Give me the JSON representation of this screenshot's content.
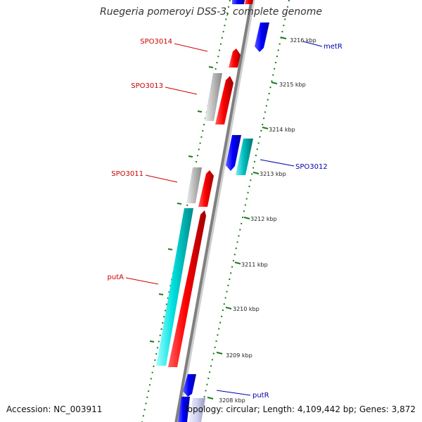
{
  "title": "Ruegeria pomeroyi DSS-3, complete genome",
  "footer": {
    "accession": "Accession: NC_003911",
    "topology": "Topology: circular; Length: 4,109,442 bp; Genes: 3,872"
  },
  "colors": {
    "backbone": "#808080",
    "tick": "#1a7a1a",
    "forward_gene": "#ff0000",
    "reverse_gene": "#0000ff",
    "cyan_gene": "#00cccc",
    "pseudo_gene": "#bbbbbb",
    "left_label": "#cc0000",
    "right_label": "#0000aa"
  },
  "kbp_ticks": [
    "3216 kbp",
    "3215 kbp",
    "3214 kbp",
    "3213 kbp",
    "3212 kbp",
    "3211 kbp",
    "3210 kbp",
    "3209 kbp",
    "3208 kbp"
  ],
  "gene_labels": {
    "left": [
      "SPO3014",
      "SPO3013",
      "SPO3011",
      "putA"
    ],
    "right": [
      "metR",
      "SPO3012",
      "putR"
    ]
  }
}
